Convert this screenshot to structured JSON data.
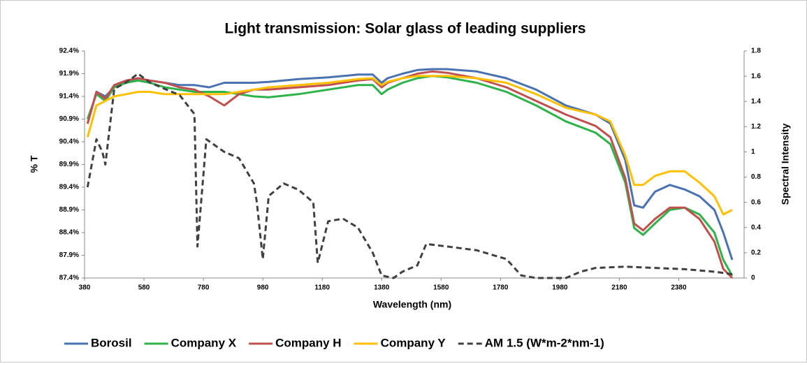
{
  "chart_data": {
    "type": "line",
    "title": "Light transmission:  Solar glass of leading suppliers",
    "xlabel": "Wavelength (nm)",
    "ylabel": "% T",
    "y2label": "Spectral Intensity",
    "xlim": [
      380,
      2600
    ],
    "xticks": [
      380,
      580,
      780,
      980,
      1180,
      1380,
      1580,
      1780,
      1980,
      2180,
      2380
    ],
    "ylim": [
      87.4,
      92.4
    ],
    "yticks": [
      {
        "value": 87.4,
        "label": "87.4%"
      },
      {
        "value": 87.9,
        "label": "87.9%"
      },
      {
        "value": 88.4,
        "label": "88.4%"
      },
      {
        "value": 88.9,
        "label": "88.9%"
      },
      {
        "value": 89.4,
        "label": "89.4%"
      },
      {
        "value": 89.9,
        "label": "89.9%"
      },
      {
        "value": 90.4,
        "label": "90.4%"
      },
      {
        "value": 90.9,
        "label": "90.9%"
      },
      {
        "value": 91.4,
        "label": "91.4%"
      },
      {
        "value": 91.9,
        "label": "91.9%"
      },
      {
        "value": 92.4,
        "label": "92.4%"
      }
    ],
    "y2lim": [
      0,
      1.8
    ],
    "y2ticks": [
      0,
      0.2,
      0.4,
      0.6,
      0.8,
      1,
      1.2,
      1.4,
      1.6,
      1.8
    ],
    "legend": "bottom",
    "x": [
      390,
      420,
      450,
      480,
      520,
      560,
      600,
      650,
      700,
      750,
      800,
      850,
      900,
      950,
      1000,
      1100,
      1200,
      1300,
      1350,
      1380,
      1400,
      1450,
      1500,
      1550,
      1600,
      1700,
      1800,
      1900,
      2000,
      2100,
      2150,
      2200,
      2230,
      2260,
      2300,
      2350,
      2400,
      2450,
      2500,
      2530,
      2560
    ],
    "series": [
      {
        "name": "Borosil",
        "color": "#4a72b0",
        "values": [
          90.8,
          91.5,
          91.4,
          91.6,
          91.7,
          91.8,
          91.75,
          91.7,
          91.65,
          91.65,
          91.6,
          91.7,
          91.7,
          91.7,
          91.72,
          91.78,
          91.82,
          91.88,
          91.88,
          91.7,
          91.8,
          91.9,
          91.98,
          92.0,
          92.0,
          91.95,
          91.8,
          91.55,
          91.2,
          91.0,
          90.8,
          90.0,
          89.0,
          88.95,
          89.3,
          89.45,
          89.35,
          89.2,
          88.9,
          88.4,
          87.8
        ]
      },
      {
        "name": "Company X",
        "color": "#2db34a",
        "values": [
          90.9,
          91.45,
          91.3,
          91.6,
          91.7,
          91.75,
          91.7,
          91.6,
          91.55,
          91.5,
          91.5,
          91.5,
          91.45,
          91.4,
          91.38,
          91.45,
          91.55,
          91.65,
          91.65,
          91.45,
          91.55,
          91.7,
          91.8,
          91.85,
          91.82,
          91.7,
          91.5,
          91.2,
          90.85,
          90.6,
          90.35,
          89.5,
          88.5,
          88.35,
          88.6,
          88.9,
          88.95,
          88.8,
          88.4,
          87.8,
          87.45
        ]
      },
      {
        "name": "Company H",
        "color": "#c0504d",
        "values": [
          90.8,
          91.5,
          91.35,
          91.65,
          91.75,
          91.8,
          91.75,
          91.7,
          91.6,
          91.55,
          91.4,
          91.2,
          91.45,
          91.55,
          91.55,
          91.6,
          91.65,
          91.75,
          91.78,
          91.6,
          91.7,
          91.8,
          91.9,
          91.95,
          91.92,
          91.8,
          91.6,
          91.3,
          91.0,
          90.75,
          90.5,
          89.6,
          88.6,
          88.45,
          88.7,
          88.95,
          88.95,
          88.7,
          88.2,
          87.6,
          87.4
        ]
      },
      {
        "name": "Company Y",
        "color": "#ffc000",
        "values": [
          90.5,
          91.2,
          91.3,
          91.4,
          91.45,
          91.5,
          91.5,
          91.45,
          91.45,
          91.45,
          91.45,
          91.45,
          91.5,
          91.55,
          91.6,
          91.65,
          91.7,
          91.78,
          91.8,
          91.65,
          91.72,
          91.8,
          91.85,
          91.85,
          91.85,
          91.8,
          91.7,
          91.45,
          91.15,
          91.0,
          90.85,
          90.1,
          89.45,
          89.45,
          89.65,
          89.75,
          89.75,
          89.5,
          89.2,
          88.8,
          88.9
        ]
      },
      {
        "name": "AM 1.5 (W*m-2*nm-1)",
        "color": "#404040",
        "line_style": "dashed",
        "axis": "y2",
        "x": [
          390,
          420,
          440,
          450,
          480,
          520,
          560,
          600,
          650,
          700,
          750,
          760,
          790,
          850,
          900,
          950,
          960,
          980,
          1000,
          1050,
          1100,
          1150,
          1165,
          1200,
          1250,
          1300,
          1350,
          1380,
          1420,
          1450,
          1500,
          1530,
          1600,
          1700,
          1800,
          1850,
          1900,
          2000,
          2050,
          2100,
          2200,
          2300,
          2400,
          2500,
          2560
        ],
        "values": [
          0.72,
          1.1,
          1.0,
          0.9,
          1.5,
          1.55,
          1.62,
          1.55,
          1.5,
          1.45,
          1.3,
          0.25,
          1.1,
          1.0,
          0.95,
          0.75,
          0.6,
          0.15,
          0.65,
          0.75,
          0.7,
          0.6,
          0.12,
          0.45,
          0.47,
          0.4,
          0.2,
          0.02,
          0,
          0.05,
          0.1,
          0.27,
          0.25,
          0.22,
          0.15,
          0.02,
          0,
          0,
          0.05,
          0.08,
          0.09,
          0.08,
          0.07,
          0.05,
          0.03
        ]
      }
    ]
  }
}
